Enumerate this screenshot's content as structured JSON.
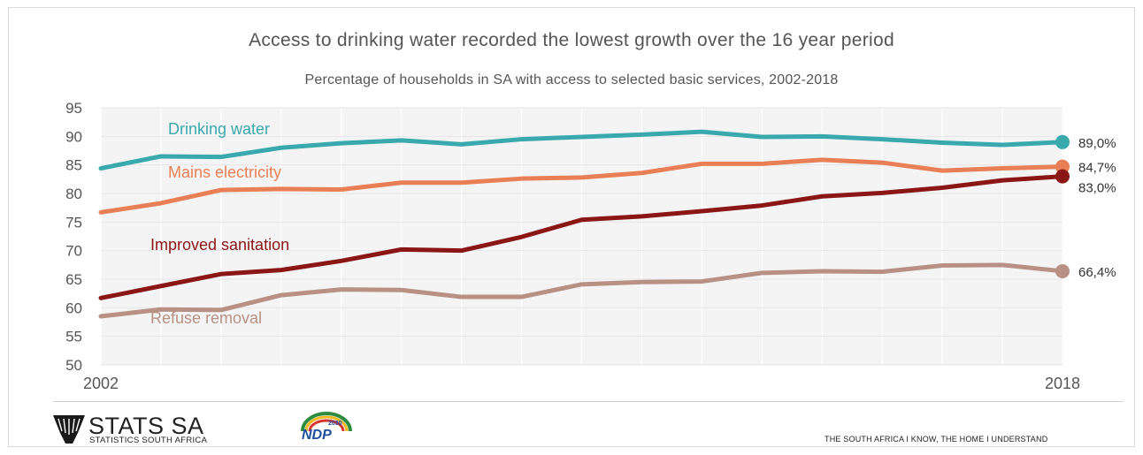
{
  "header": {
    "title": "Access to drinking water recorded the lowest growth over the 16 year period",
    "subtitle": "Percentage of households in SA with access to selected basic services, 2002-2018"
  },
  "chart_data": {
    "type": "line",
    "title": "Access to drinking water recorded the lowest growth over the 16 year period",
    "subtitle": "Percentage of households in SA with access to selected basic services, 2002-2018",
    "x": [
      2002,
      2003,
      2004,
      2005,
      2006,
      2007,
      2008,
      2009,
      2010,
      2011,
      2012,
      2013,
      2014,
      2015,
      2016,
      2017,
      2018
    ],
    "x_tick_labels": {
      "first": "2002",
      "last": "2018"
    },
    "ylim": [
      50,
      95
    ],
    "yticks": [
      "50",
      "55",
      "60",
      "65",
      "70",
      "75",
      "80",
      "85",
      "90",
      "95"
    ],
    "grid": "vertical and horizontal, light",
    "series": [
      {
        "name": "Drinking water",
        "color": "#3aa9ad",
        "end_label": "89,0%",
        "values": [
          84.4,
          86.5,
          86.4,
          88.0,
          88.8,
          89.3,
          88.6,
          89.5,
          89.9,
          90.3,
          90.8,
          89.9,
          90.0,
          89.5,
          88.9,
          88.5,
          89.0
        ]
      },
      {
        "name": "Mains electricity",
        "color": "#e97f57",
        "end_label": "84,7%",
        "values": [
          76.7,
          78.3,
          80.6,
          80.8,
          80.7,
          81.9,
          81.9,
          82.6,
          82.8,
          83.6,
          85.2,
          85.2,
          85.9,
          85.4,
          84.0,
          84.4,
          84.7
        ]
      },
      {
        "name": "Improved sanitation",
        "color": "#8b1616",
        "end_label": "83,0%",
        "values": [
          61.7,
          63.8,
          65.9,
          66.6,
          68.2,
          70.2,
          70.0,
          72.4,
          75.4,
          76.0,
          76.9,
          77.9,
          79.5,
          80.1,
          81.0,
          82.3,
          83.0
        ]
      },
      {
        "name": "Refuse removal",
        "color": "#b89184",
        "end_label": "66,4%",
        "values": [
          58.5,
          59.7,
          59.6,
          62.2,
          63.2,
          63.1,
          61.9,
          61.9,
          64.1,
          64.5,
          64.6,
          66.1,
          66.4,
          66.3,
          67.4,
          67.5,
          66.4
        ]
      }
    ]
  },
  "footer": {
    "org_name": "STATS SA",
    "org_sub": "STATISTICS SOUTH AFRICA",
    "ndp_text": "NDP",
    "ndp_year": "2030",
    "tagline": "THE SOUTH AFRICA I KNOW, THE HOME I UNDERSTAND"
  }
}
